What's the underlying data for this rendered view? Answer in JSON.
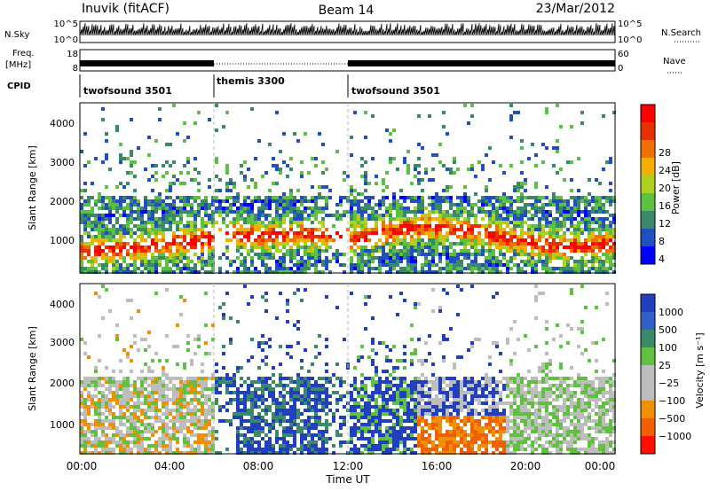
{
  "header": {
    "title_left": "Inuvik (fitACF)",
    "title_center": "Beam 14",
    "title_right": "23/Mar/2012"
  },
  "top_panels": {
    "nsky_label": "N.Sky",
    "nsearch_label": "N.Search",
    "nsky_ticks": [
      "10^5",
      "10^0"
    ],
    "nsearch_ticks": [
      "10^5",
      "10^0"
    ],
    "freq_label_line1": "Freq.",
    "freq_label_line2": "[MHz]",
    "freq_ticks": [
      "18",
      "8"
    ],
    "nave_label": "Nave",
    "nave_ticks": [
      "60",
      "0"
    ],
    "cpid_label": "CPID",
    "cpid_segments": [
      {
        "label": "twofsound 3501",
        "start_h": 0,
        "end_h": 6
      },
      {
        "label": "themis 3300",
        "start_h": 6,
        "end_h": 12
      },
      {
        "label": "twofsound 3501",
        "start_h": 12,
        "end_h": 24
      }
    ]
  },
  "chart_data": [
    {
      "type": "heatmap",
      "name": "power",
      "ylabel": "Slant Range [km]",
      "x_range_h": [
        0,
        24
      ],
      "ylim": [
        200,
        4600
      ],
      "yticks": [
        "1000",
        "2000",
        "3000",
        "4000"
      ],
      "colorbar_label": "Power [dB]",
      "colorbar_ticks": [
        "28",
        "24",
        "20",
        "16",
        "12",
        "8",
        "4"
      ],
      "colors": [
        "#0000ff",
        "#2050c0",
        "#3a8a6a",
        "#5cc040",
        "#b0d020",
        "#f4b000",
        "#f07000",
        "#e83000",
        "#ff0000"
      ]
    },
    {
      "type": "heatmap",
      "name": "velocity",
      "ylabel": "Slant Range [km]",
      "x_range_h": [
        0,
        24
      ],
      "ylim": [
        200,
        4600
      ],
      "yticks": [
        "1000",
        "2000",
        "3000",
        "4000"
      ],
      "xlabel": "Time UT",
      "xticks": [
        "00:00",
        "04:00",
        "08:00",
        "12:00",
        "16:00",
        "20:00",
        "00:00"
      ],
      "colorbar_label": "Velocity [m s⁻¹]",
      "colorbar_ticks": [
        "1000",
        "500",
        "100",
        "25",
        "−25",
        "−100",
        "−500",
        "−1000"
      ],
      "colors": [
        "#2040c0",
        "#3060c8",
        "#3a8a6a",
        "#60c040",
        "#bdbdbd",
        "#bdbdbd",
        "#f09000",
        "#f06000",
        "#ff1000"
      ]
    }
  ]
}
